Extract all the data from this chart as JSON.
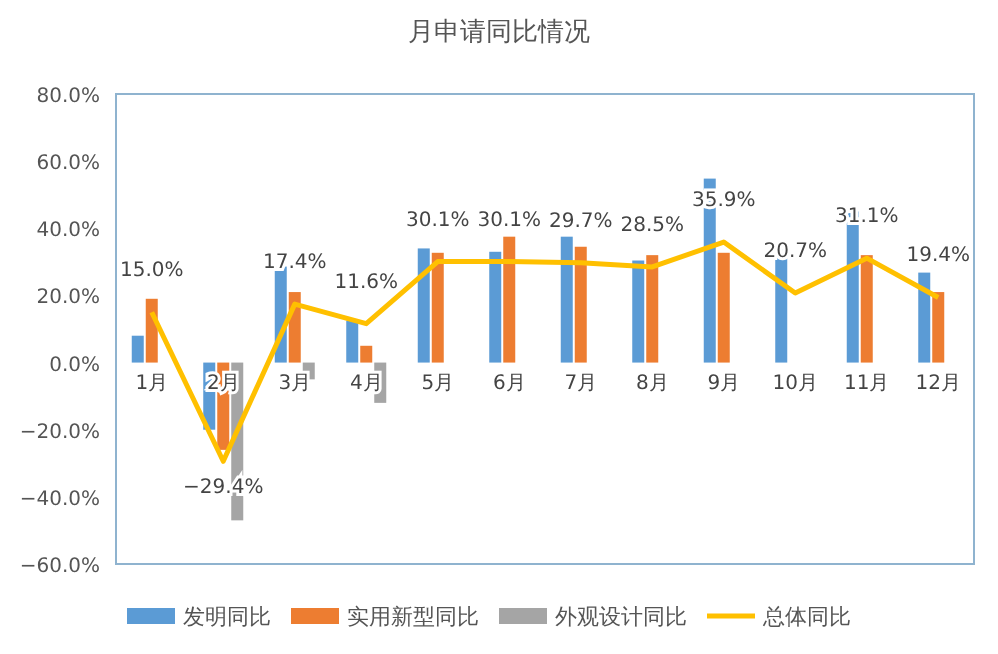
{
  "chart_data": {
    "type": "bar",
    "title": "月申请同比情况",
    "categories": [
      "1月",
      "2月",
      "3月",
      "4月",
      "5月",
      "6月",
      "7月",
      "8月",
      "9月",
      "10月",
      "11月",
      "12月"
    ],
    "series": [
      {
        "name": "发明同比",
        "color": "#5b9bd5",
        "values": [
          8,
          -20,
          28.6,
          12.5,
          34,
          33,
          37.5,
          30.4,
          54.8,
          34.5,
          45,
          26.8
        ]
      },
      {
        "name": "实用新型同比",
        "color": "#ed7d31",
        "values": [
          19,
          -26,
          21,
          5,
          32.7,
          37.5,
          34.5,
          32,
          32.7,
          null,
          32,
          21
        ]
      },
      {
        "name": "外观设计同比",
        "color": "#a5a5a5",
        "values": [
          null,
          -47,
          -5,
          -12,
          null,
          null,
          null,
          null,
          null,
          null,
          null,
          null
        ]
      },
      {
        "name": "总体同比",
        "type": "line",
        "color": "#ffc000",
        "values": [
          15.0,
          -29.4,
          17.4,
          11.6,
          30.1,
          30.1,
          29.7,
          28.5,
          35.9,
          20.7,
          31.1,
          19.4
        ],
        "value_labels": [
          "15.0%",
          "−29.4%",
          "17.4%",
          "11.6%",
          "30.1%",
          "30.1%",
          "29.7%",
          "28.5%",
          "35.9%",
          "20.7%",
          "31.1%",
          "19.4%"
        ]
      }
    ],
    "ylim": [
      -60,
      80
    ],
    "yticks": [
      {
        "value": -60,
        "label": "−60.0%"
      },
      {
        "value": -40,
        "label": "−40.0%"
      },
      {
        "value": -20,
        "label": "−20.0%"
      },
      {
        "value": 0,
        "label": "0.0%"
      },
      {
        "value": 20,
        "label": "20.0%"
      },
      {
        "value": 40,
        "label": "40.0%"
      },
      {
        "value": 60,
        "label": "60.0%"
      },
      {
        "value": 80,
        "label": "80.0%"
      }
    ],
    "legend": "bottom",
    "marker": "none",
    "line_style": "solid"
  }
}
